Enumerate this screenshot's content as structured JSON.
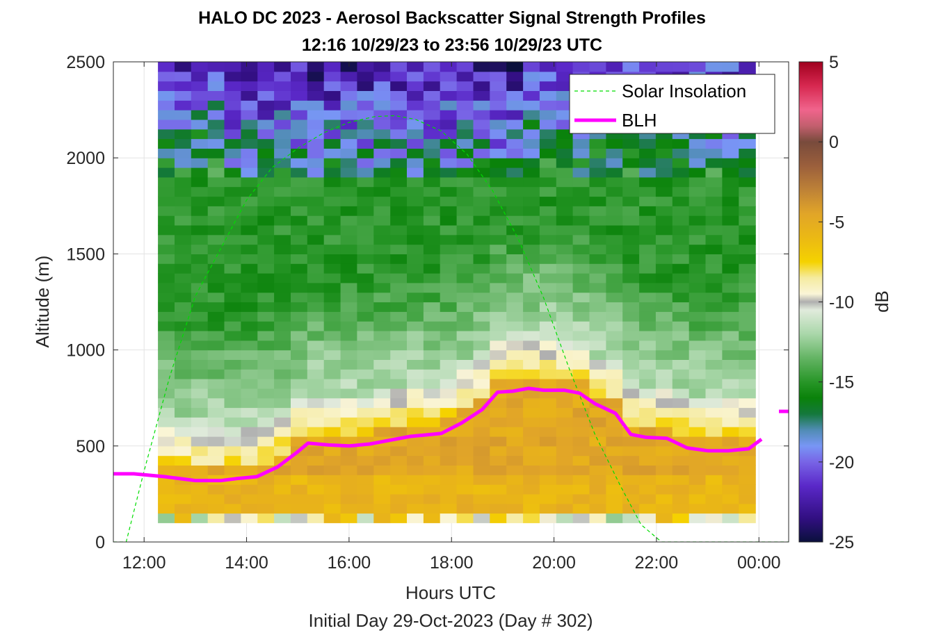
{
  "chart_data": {
    "type": "heatmap",
    "title_line1": "HALO DC 2023 - Aerosol Backscatter Signal Strength Profiles",
    "title_line2": "12:16 10/29/23 to 23:56 10/29/23  UTC",
    "xlabel": "Hours UTC",
    "subtitle": "Initial Day 29-Oct-2023 (Day # 302)",
    "ylabel": "Altitude (m)",
    "colorbar_label": "dB",
    "colormap": "custom diverging (navy–purple–blue–teal–green–white–yellow–orange–brown–pink–red)",
    "xlim_hours": [
      11.4,
      24.58
    ],
    "ylim": [
      0,
      2500
    ],
    "x_ticks": [
      {
        "hour": 12,
        "label": "12:00"
      },
      {
        "hour": 14,
        "label": "14:00"
      },
      {
        "hour": 16,
        "label": "16:00"
      },
      {
        "hour": 18,
        "label": "18:00"
      },
      {
        "hour": 20,
        "label": "20:00"
      },
      {
        "hour": 22,
        "label": "22:00"
      },
      {
        "hour": 24,
        "label": "00:00"
      }
    ],
    "y_ticks": [
      {
        "value": 0,
        "label": "0"
      },
      {
        "value": 500,
        "label": "500"
      },
      {
        "value": 1000,
        "label": "1000"
      },
      {
        "value": 1500,
        "label": "1500"
      },
      {
        "value": 2000,
        "label": "2000"
      },
      {
        "value": 2500,
        "label": "2500"
      }
    ],
    "clim": [
      -25,
      5
    ],
    "colorbar_ticks": [
      {
        "value": 5,
        "label": "5"
      },
      {
        "value": 0,
        "label": "0"
      },
      {
        "value": -5,
        "label": "-5"
      },
      {
        "value": -10,
        "label": "-10"
      },
      {
        "value": -15,
        "label": "-15"
      },
      {
        "value": -20,
        "label": "-20"
      },
      {
        "value": -25,
        "label": "-25"
      }
    ],
    "grid": true,
    "legend_position": "top-right",
    "legend": [
      {
        "label": "Solar Insolation",
        "color": "#00dd00",
        "style": "dashed"
      },
      {
        "label": "BLH",
        "color": "#ff00ff",
        "style": "solid"
      }
    ],
    "heatmap_time_range_hours": [
      12.27,
      23.93
    ],
    "heatmap_alt_range_m": [
      100,
      2500
    ],
    "heatmap_bin_m": 50,
    "series": [
      {
        "name": "BLH",
        "x_hours": [
          11.4,
          11.8,
          12.4,
          13.0,
          13.5,
          13.8,
          14.2,
          14.6,
          15.0,
          15.2,
          15.6,
          16.0,
          16.4,
          16.8,
          17.2,
          17.6,
          17.8,
          18.2,
          18.6,
          18.9,
          19.2,
          19.5,
          19.8,
          20.2,
          20.5,
          20.8,
          21.2,
          21.5,
          21.8,
          22.2,
          22.6,
          23.0,
          23.4,
          23.8,
          24.05
        ],
        "y": [
          355,
          355,
          340,
          320,
          320,
          330,
          340,
          390,
          470,
          515,
          505,
          500,
          510,
          530,
          550,
          560,
          565,
          620,
          690,
          780,
          785,
          800,
          790,
          790,
          775,
          720,
          670,
          560,
          545,
          540,
          490,
          475,
          475,
          485,
          535
        ]
      },
      {
        "name": "Solar Insolation",
        "x_hours": [
          11.4,
          11.65,
          12.0,
          12.5,
          13.0,
          13.5,
          14.0,
          14.5,
          15.0,
          15.5,
          16.0,
          16.5,
          16.9,
          17.3,
          17.8,
          18.3,
          18.8,
          19.3,
          19.8,
          20.3,
          20.8,
          21.3,
          21.7,
          22.1,
          22.5,
          23.0,
          24.58
        ],
        "y": [
          0,
          0,
          370,
          860,
          1280,
          1530,
          1780,
          1950,
          2050,
          2130,
          2185,
          2215,
          2220,
          2200,
          2140,
          2020,
          1830,
          1580,
          1270,
          900,
          560,
          290,
          90,
          0,
          0,
          0,
          0
        ]
      }
    ],
    "blh_recent_marker": {
      "hour": 24.58,
      "y": 680
    }
  }
}
